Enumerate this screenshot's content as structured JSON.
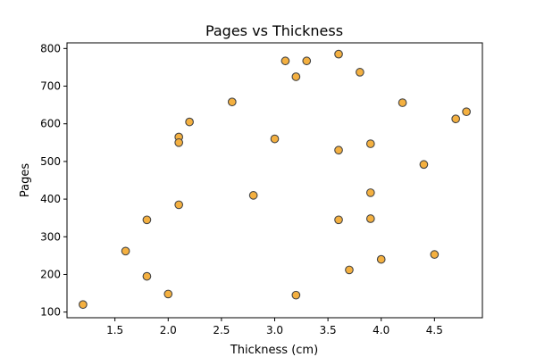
{
  "chart_data": {
    "type": "scatter",
    "title": "Pages vs Thickness",
    "xlabel": "Thickness (cm)",
    "ylabel": "Pages",
    "xlim": [
      1.05,
      4.95
    ],
    "ylim": [
      85,
      815
    ],
    "xticks": [
      1.5,
      2.0,
      2.5,
      3.0,
      3.5,
      4.0,
      4.5
    ],
    "xtick_labels": [
      "1.5",
      "2.0",
      "2.5",
      "3.0",
      "3.5",
      "4.0",
      "4.5"
    ],
    "yticks": [
      100,
      200,
      300,
      400,
      500,
      600,
      700,
      800
    ],
    "ytick_labels": [
      "100",
      "200",
      "300",
      "400",
      "500",
      "600",
      "700",
      "800"
    ],
    "grid": false,
    "marker_color": "#f4b040",
    "marker_edge_color": "#444444",
    "points": [
      {
        "x": 1.2,
        "y": 120
      },
      {
        "x": 1.6,
        "y": 262
      },
      {
        "x": 1.8,
        "y": 345
      },
      {
        "x": 1.8,
        "y": 195
      },
      {
        "x": 2.0,
        "y": 148
      },
      {
        "x": 2.1,
        "y": 565
      },
      {
        "x": 2.1,
        "y": 550
      },
      {
        "x": 2.1,
        "y": 385
      },
      {
        "x": 2.2,
        "y": 605
      },
      {
        "x": 2.6,
        "y": 658
      },
      {
        "x": 2.8,
        "y": 410
      },
      {
        "x": 3.0,
        "y": 560
      },
      {
        "x": 3.1,
        "y": 767
      },
      {
        "x": 3.2,
        "y": 725
      },
      {
        "x": 3.2,
        "y": 145
      },
      {
        "x": 3.3,
        "y": 767
      },
      {
        "x": 3.6,
        "y": 785
      },
      {
        "x": 3.6,
        "y": 530
      },
      {
        "x": 3.6,
        "y": 345
      },
      {
        "x": 3.7,
        "y": 212
      },
      {
        "x": 3.8,
        "y": 737
      },
      {
        "x": 3.9,
        "y": 547
      },
      {
        "x": 3.9,
        "y": 417
      },
      {
        "x": 3.9,
        "y": 348
      },
      {
        "x": 4.0,
        "y": 240
      },
      {
        "x": 4.2,
        "y": 656
      },
      {
        "x": 4.4,
        "y": 492
      },
      {
        "x": 4.5,
        "y": 253
      },
      {
        "x": 4.7,
        "y": 613
      },
      {
        "x": 4.8,
        "y": 632
      }
    ]
  }
}
